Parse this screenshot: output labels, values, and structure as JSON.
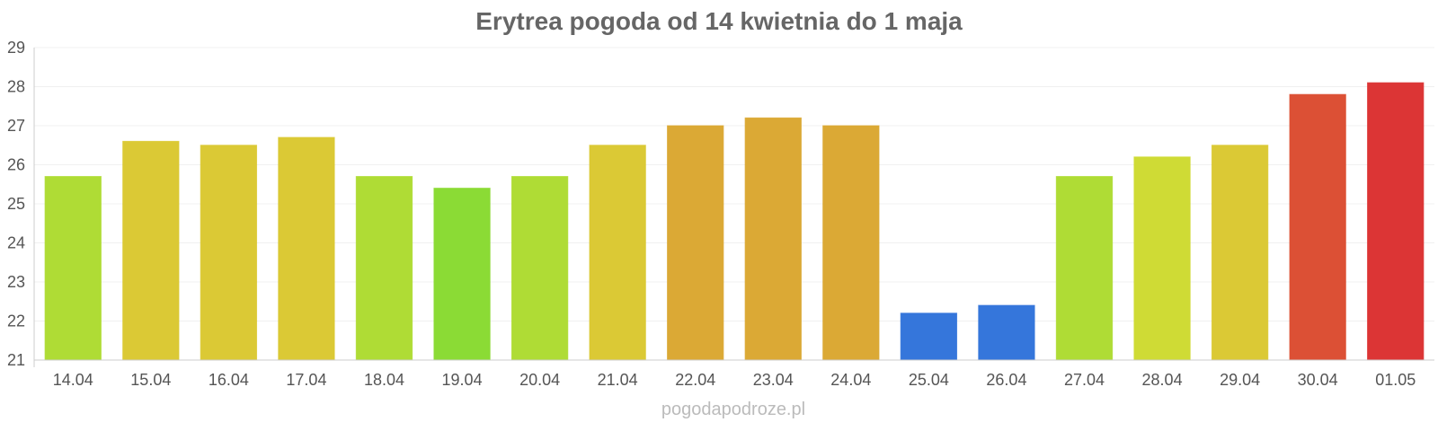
{
  "chart_data": {
    "type": "bar",
    "title": "Erytrea pogoda od 14 kwietnia do 1 maja",
    "xlabel": "",
    "ylabel": "",
    "ylim": [
      21,
      29
    ],
    "yticks": [
      21,
      22,
      23,
      24,
      25,
      26,
      27,
      28,
      29
    ],
    "grid": true,
    "legend": "none",
    "categories": [
      "14.04",
      "15.04",
      "16.04",
      "17.04",
      "18.04",
      "19.04",
      "20.04",
      "21.04",
      "22.04",
      "23.04",
      "24.04",
      "25.04",
      "26.04",
      "27.04",
      "28.04",
      "29.04",
      "30.04",
      "01.05"
    ],
    "values": [
      25.7,
      26.6,
      26.5,
      26.7,
      25.7,
      25.4,
      25.7,
      26.5,
      27.0,
      27.2,
      27.0,
      22.2,
      22.4,
      25.7,
      26.2,
      26.5,
      27.8,
      28.1
    ],
    "colors": [
      "#afdc35",
      "#dbc935",
      "#dbc935",
      "#dbc935",
      "#afdc35",
      "#8bdb35",
      "#afdc35",
      "#dbc935",
      "#dba935",
      "#dba935",
      "#dba935",
      "#3576db",
      "#3576db",
      "#afdc35",
      "#cfdb35",
      "#dbc935",
      "#dc5035",
      "#dc3535"
    ]
  },
  "watermark": "pogodapodroze.pl"
}
